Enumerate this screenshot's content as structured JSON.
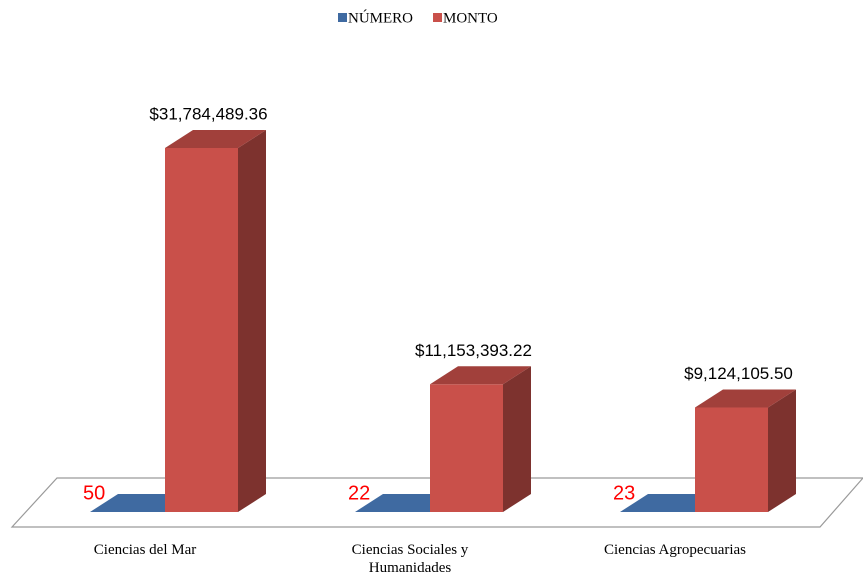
{
  "chart_data": {
    "type": "bar3d",
    "categories": [
      "Ciencias del Mar",
      "Ciencias Sociales y Humanidades",
      "Ciencias Agropecuarias"
    ],
    "series": [
      {
        "name": "NÚMERO",
        "color": "#3f6aa1",
        "values": [
          50,
          22,
          23
        ]
      },
      {
        "name": "MONTO",
        "color": "#c9504a",
        "values": [
          31784489.36,
          11153393.22,
          9124105.5
        ],
        "value_labels": [
          "$31,784,489.36",
          "$11,153,393.22",
          "$9,124,105.50"
        ]
      }
    ],
    "legend": "top"
  }
}
